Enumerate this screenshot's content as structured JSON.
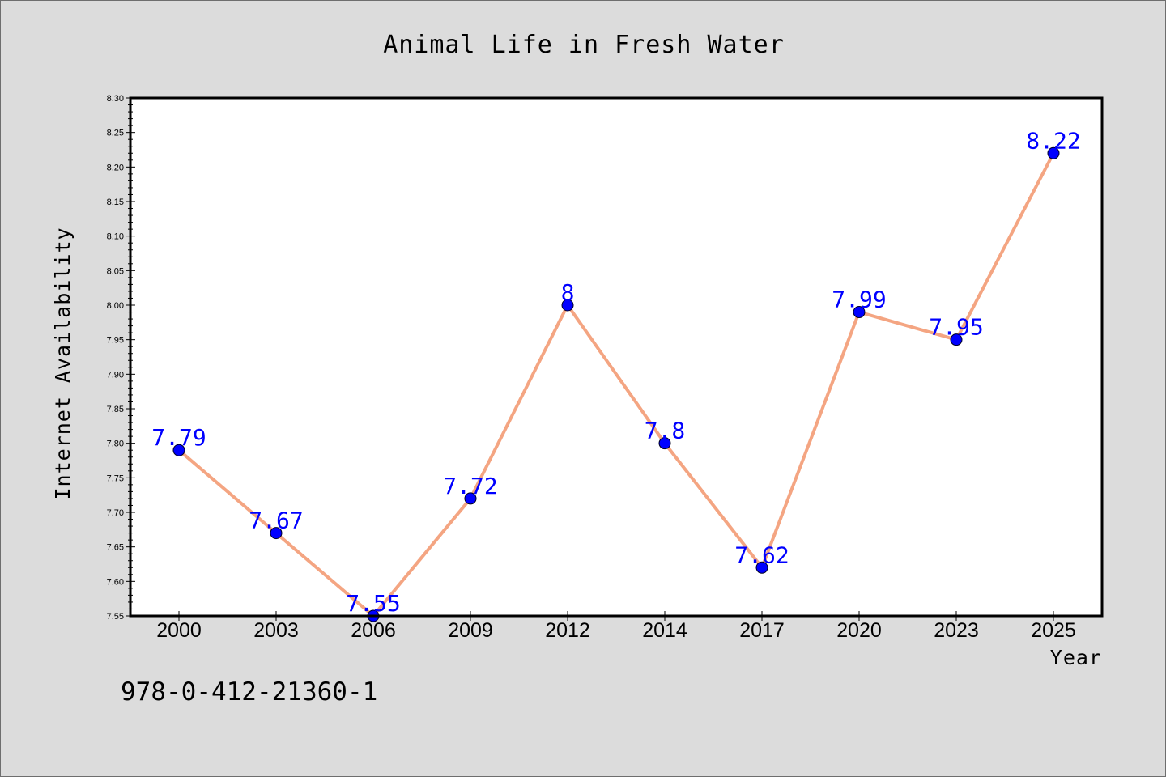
{
  "chart_data": {
    "type": "line",
    "title": "Animal Life in Fresh Water",
    "xlabel": "Year",
    "ylabel": "Internet Availability",
    "categories": [
      "2000",
      "2003",
      "2006",
      "2009",
      "2012",
      "2014",
      "2017",
      "2020",
      "2023",
      "2025"
    ],
    "series": [
      {
        "values": [
          7.79,
          7.67,
          7.55,
          7.72,
          8.0,
          7.8,
          7.62,
          7.99,
          7.95,
          8.22
        ],
        "data_labels": [
          "7.79",
          "7.67",
          "7.55",
          "7.72",
          "8",
          "7.8",
          "7.62",
          "7.99",
          "7.95",
          "8.22"
        ],
        "line_color": "#f4a582",
        "marker_color": "#0000ff"
      }
    ],
    "ylim": [
      7.55,
      8.3
    ],
    "yticks": [
      "7.55",
      "7.60",
      "7.65",
      "7.70",
      "7.75",
      "7.80",
      "7.85",
      "7.90",
      "7.95",
      "8.00",
      "8.05",
      "8.10",
      "8.15",
      "8.20",
      "8.25",
      "8.30"
    ],
    "grid": false,
    "legend": false
  },
  "footer": {
    "isbn": "978-0-412-21360-1"
  }
}
